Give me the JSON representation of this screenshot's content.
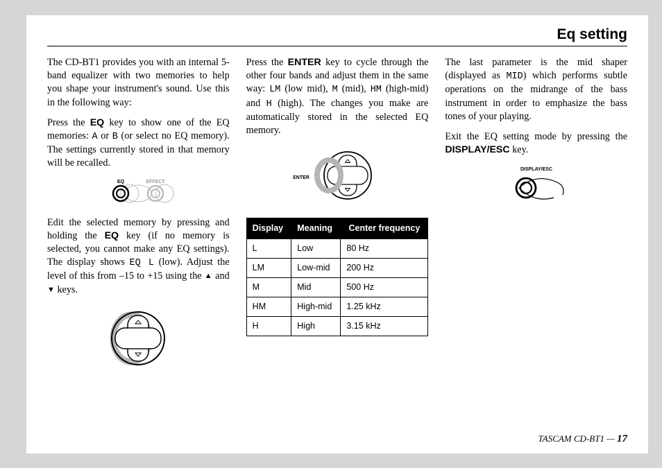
{
  "header": {
    "title": "Eq setting"
  },
  "col1": {
    "p1_a": "The CD-BT1 provides you with an internal 5-band equalizer with two memories to help you shape your instrument's sound. Use this in the following way:",
    "p2_a": "Press the ",
    "p2_key": "EQ",
    "p2_b": " key to show one of the EQ memories: ",
    "p2_m1": "A",
    "p2_c": " or ",
    "p2_m2": "B",
    "p2_d": " (or select no EQ memory). The settings currently stored in that memory will be recalled.",
    "p3_a": "Edit the selected memory by pressing and holding the ",
    "p3_key": "EQ",
    "p3_b": " key (if no memory is selected, you cannot make any EQ settings). The display shows ",
    "p3_m": "EQ L",
    "p3_c": " (low). Adjust the level of this from –15 to +15 using the ",
    "p3_d": " and ",
    "p3_e": " keys."
  },
  "col2": {
    "p1_a": "Press the ",
    "p1_key": "ENTER",
    "p1_b": " key to cycle through the other four bands and adjust them in the same way: ",
    "p1_m1": "LM",
    "p1_c": " (low mid), ",
    "p1_m2": "M",
    "p1_d": " (mid), ",
    "p1_m3": "HM",
    "p1_e": " (high-mid) and ",
    "p1_m4": "H",
    "p1_f": " (high). The changes you make are automatically stored in the selected EQ memory."
  },
  "table": {
    "headers": [
      "Display",
      "Meaning",
      "Center frequency"
    ],
    "rows": [
      [
        "L",
        "Low",
        "80 Hz"
      ],
      [
        "LM",
        "Low-mid",
        "200 Hz"
      ],
      [
        "M",
        "Mid",
        "500 Hz"
      ],
      [
        "HM",
        "High-mid",
        "1.25 kHz"
      ],
      [
        "H",
        "High",
        "3.15 kHz"
      ]
    ]
  },
  "col3": {
    "p1_a": "The last parameter is the mid shaper (displayed as ",
    "p1_m": "MID",
    "p1_b": ") which performs subtle operations on the midrange of the bass instrument in order to emphasize the bass tones of your playing.",
    "p2_a": "Exit the EQ setting mode by pressing the ",
    "p2_key": "DISPLAY/ESC",
    "p2_b": " key."
  },
  "footer": {
    "product": "TASCAM CD-BT1 — ",
    "page": "17"
  },
  "fig_labels": {
    "eq": "EQ",
    "effect": "EFFECT",
    "enter": "ENTER",
    "disp": "DISPLAY/ESC"
  }
}
